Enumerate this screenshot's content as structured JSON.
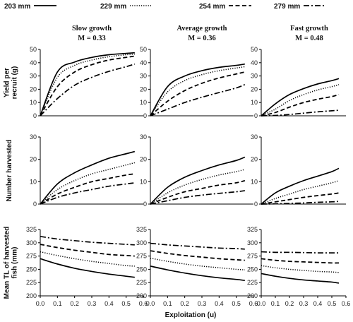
{
  "legend": [
    {
      "label": "203 mm",
      "dash": "solid"
    },
    {
      "label": "229 mm",
      "dash": "dotted"
    },
    {
      "label": "254 mm",
      "dash": "dashed"
    },
    {
      "label": "279 mm",
      "dash": "dashdot"
    }
  ],
  "columns": [
    {
      "title": "Slow growth",
      "subtitle": "M = 0.33"
    },
    {
      "title": "Average growth",
      "subtitle": "M = 0.36"
    },
    {
      "title": "Fast growth",
      "subtitle": "M = 0.48"
    }
  ],
  "row_labels": [
    [
      "Yield per",
      "recruit (g)"
    ],
    [
      "Number harvested"
    ],
    [
      "Mean TL of harvested",
      "fish (mm)"
    ]
  ],
  "x_axis_label": "Exploitation (u)",
  "chart_data": {
    "type": "line",
    "x": [
      0.0,
      0.1,
      0.2,
      0.3,
      0.4,
      0.5,
      0.55
    ],
    "xlim": [
      0.0,
      0.6
    ],
    "xticks": [
      "0.0",
      "0.1",
      "0.2",
      "0.3",
      "0.4",
      "0.5",
      "0.6"
    ],
    "series_names": [
      "203 mm",
      "229 mm",
      "254 mm",
      "279 mm"
    ],
    "rows": [
      {
        "ylabel": "Yield per recruit (g)",
        "ylim": [
          0,
          50
        ],
        "yticks": [
          "0",
          "10",
          "20",
          "30",
          "40",
          "50"
        ],
        "panels": [
          {
            "column": "Slow growth",
            "series": [
              {
                "name": "203 mm",
                "values": [
                  0,
                  33,
                  40.5,
                  44,
                  46,
                  47,
                  47.5
                ]
              },
              {
                "name": "229 mm",
                "values": [
                  0,
                  29,
                  38,
                  42,
                  44.5,
                  46,
                  46.5
                ]
              },
              {
                "name": "254 mm",
                "values": [
                  0,
                  22,
                  33,
                  38.5,
                  42,
                  44,
                  45
                ]
              },
              {
                "name": "279 mm",
                "values": [
                  0,
                  13,
                  23,
                  29,
                  33.5,
                  37,
                  39
                ]
              }
            ]
          },
          {
            "column": "Average growth",
            "series": [
              {
                "name": "203 mm",
                "values": [
                  0,
                  22,
                  30,
                  34,
                  36.5,
                  38,
                  39
                ]
              },
              {
                "name": "229 mm",
                "values": [
                  0,
                  18,
                  26.5,
                  31,
                  34,
                  36,
                  37
                ]
              },
              {
                "name": "254 mm",
                "values": [
                  0,
                  11,
                  19,
                  24.5,
                  28.5,
                  31.5,
                  33
                ]
              },
              {
                "name": "279 mm",
                "values": [
                  0,
                  5,
                  10,
                  14,
                  17.5,
                  21,
                  23.5
                ]
              }
            ]
          },
          {
            "column": "Fast growth",
            "series": [
              {
                "name": "203 mm",
                "values": [
                  0,
                  9,
                  16,
                  20.5,
                  24,
                  26.5,
                  28
                ]
              },
              {
                "name": "229 mm",
                "values": [
                  0,
                  5,
                  11.5,
                  16,
                  19.5,
                  22,
                  23.5
                ]
              },
              {
                "name": "254 mm",
                "values": [
                  0,
                  2.5,
                  6.5,
                  10,
                  12.5,
                  14.5,
                  16
                ]
              },
              {
                "name": "279 mm",
                "values": [
                  0,
                  0.3,
                  1,
                  2,
                  3,
                  3.8,
                  4.2
                ]
              }
            ]
          }
        ]
      },
      {
        "ylabel": "Number harvested",
        "ylim": [
          0,
          30
        ],
        "yticks": [
          "0",
          "10",
          "20",
          "30"
        ],
        "panels": [
          {
            "column": "Slow growth",
            "series": [
              {
                "name": "203 mm",
                "values": [
                  0,
                  9,
                  14,
                  17.5,
                  20.5,
                  22.5,
                  23.5
                ]
              },
              {
                "name": "229 mm",
                "values": [
                  0,
                  6.5,
                  10.5,
                  13.5,
                  15.5,
                  17.5,
                  18.5
                ]
              },
              {
                "name": "254 mm",
                "values": [
                  0,
                  4.5,
                  7.5,
                  10,
                  11.5,
                  13,
                  13.5
                ]
              },
              {
                "name": "279 mm",
                "values": [
                  0,
                  3,
                  5,
                  6.5,
                  8,
                  9,
                  9.5
                ]
              }
            ]
          },
          {
            "column": "Average growth",
            "series": [
              {
                "name": "203 mm",
                "values": [
                  0,
                  7.5,
                  12,
                  15,
                  17.5,
                  19.5,
                  21
                ]
              },
              {
                "name": "229 mm",
                "values": [
                  0,
                  5,
                  8.5,
                  11,
                  13,
                  14.5,
                  15.5
                ]
              },
              {
                "name": "254 mm",
                "values": [
                  0,
                  3,
                  5.5,
                  7,
                  8.5,
                  9.5,
                  10.5
                ]
              },
              {
                "name": "279 mm",
                "values": [
                  0,
                  1.5,
                  3,
                  4,
                  4.8,
                  5.5,
                  6
                ]
              }
            ]
          },
          {
            "column": "Fast growth",
            "series": [
              {
                "name": "203 mm",
                "values": [
                  0,
                  5,
                  8,
                  10.5,
                  12.5,
                  14.5,
                  16
                ]
              },
              {
                "name": "229 mm",
                "values": [
                  0,
                  2.5,
                  4.5,
                  6.5,
                  8,
                  9.5,
                  10.5
                ]
              },
              {
                "name": "254 mm",
                "values": [
                  0,
                  1,
                  2,
                  3,
                  3.8,
                  4.5,
                  5
                ]
              },
              {
                "name": "279 mm",
                "values": [
                  0,
                  0.1,
                  0.3,
                  0.5,
                  0.8,
                  1,
                  1.2
                ]
              }
            ]
          }
        ]
      },
      {
        "ylabel": "Mean TL of harvested fish (mm)",
        "ylim": [
          200,
          325
        ],
        "yticks": [
          "200",
          "225",
          "250",
          "275",
          "300",
          "325"
        ],
        "panels": [
          {
            "column": "Slow growth",
            "series": [
              {
                "name": "203 mm",
                "values": [
                  270,
                  260,
                  252,
                  246,
                  241,
                  237,
                  235
                ]
              },
              {
                "name": "229 mm",
                "values": [
                  283,
                  276,
                  270,
                  265,
                  261,
                  257,
                  256
                ]
              },
              {
                "name": "254 mm",
                "values": [
                  297,
                  291,
                  286,
                  282,
                  278,
                  276,
                  275
                ]
              },
              {
                "name": "279 mm",
                "values": [
                  312,
                  307,
                  304,
                  301,
                  299,
                  297,
                  296
                ]
              }
            ]
          },
          {
            "column": "Average growth",
            "series": [
              {
                "name": "203 mm",
                "values": [
                  256,
                  249,
                  243,
                  238,
                  234,
                  231,
                  229
                ]
              },
              {
                "name": "229 mm",
                "values": [
                  271,
                  265,
                  260,
                  256,
                  253,
                  250,
                  249
                ]
              },
              {
                "name": "254 mm",
                "values": [
                  285,
                  280,
                  276,
                  273,
                  270,
                  268,
                  267
                ]
              },
              {
                "name": "279 mm",
                "values": [
                  299,
                  296,
                  294,
                  292,
                  290,
                  289,
                  288
                ]
              }
            ]
          },
          {
            "column": "Fast growth",
            "series": [
              {
                "name": "203 mm",
                "values": [
                  242,
                  237,
                  233,
                  230,
                  228,
                  226,
                  224
                ]
              },
              {
                "name": "229 mm",
                "values": [
                  257,
                  253,
                  250,
                  248,
                  246,
                  245,
                  244
                ]
              },
              {
                "name": "254 mm",
                "values": [
                  270,
                  267,
                  265,
                  264,
                  263,
                  262,
                  262
                ]
              },
              {
                "name": "279 mm",
                "values": [
                  283,
                  282,
                  282,
                  281.5,
                  281,
                  281,
                  281
                ]
              }
            ]
          }
        ]
      }
    ]
  }
}
